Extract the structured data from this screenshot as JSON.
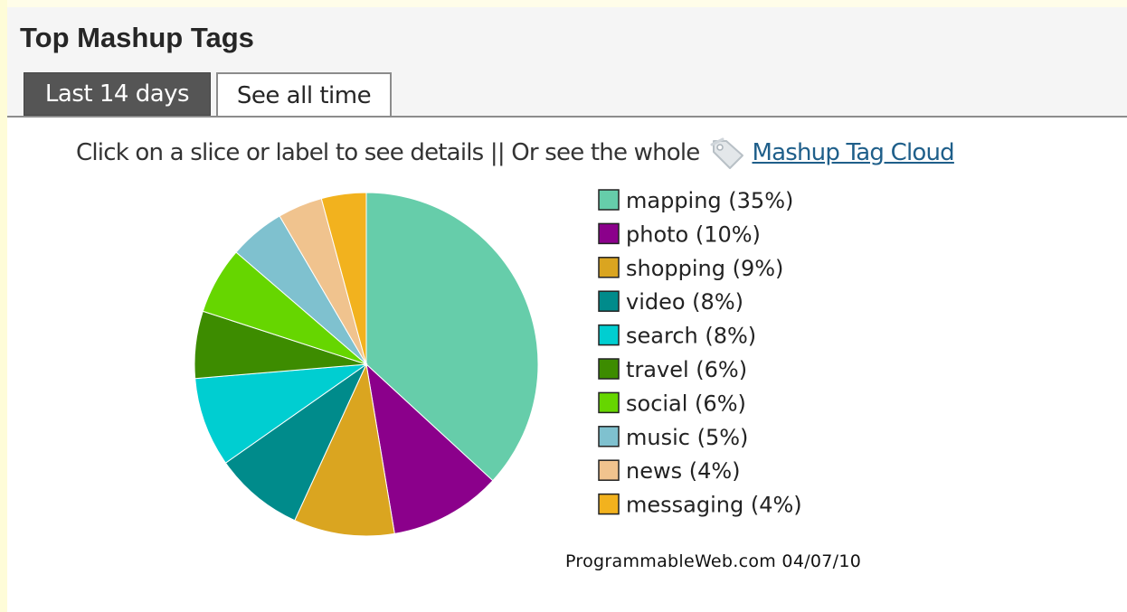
{
  "header": {
    "title": "Top Mashup Tags",
    "tabs": [
      {
        "label": "Last 14 days",
        "active": true
      },
      {
        "label": "See all time",
        "active": false
      }
    ]
  },
  "instruction": {
    "text": "Click on a slice or label to see details || Or see the whole",
    "link_label": "Mashup Tag Cloud",
    "icon": "tag-icon"
  },
  "chart_data": {
    "type": "pie",
    "unit": "%",
    "slices": [
      {
        "label": "mapping",
        "value": 35,
        "legend": "mapping (35%)",
        "color": "#66cdaa"
      },
      {
        "label": "photo",
        "value": 10,
        "legend": "photo (10%)",
        "color": "#8b008b"
      },
      {
        "label": "shopping",
        "value": 9,
        "legend": "shopping (9%)",
        "color": "#daa520"
      },
      {
        "label": "video",
        "value": 8,
        "legend": "video (8%)",
        "color": "#008b8b"
      },
      {
        "label": "search",
        "value": 8,
        "legend": "search (8%)",
        "color": "#00ced1"
      },
      {
        "label": "travel",
        "value": 6,
        "legend": "travel (6%)",
        "color": "#3d8c00"
      },
      {
        "label": "social",
        "value": 6,
        "legend": "social (6%)",
        "color": "#66d600"
      },
      {
        "label": "music",
        "value": 5,
        "legend": "music (5%)",
        "color": "#7fc1cf"
      },
      {
        "label": "news",
        "value": 4,
        "legend": "news (4%)",
        "color": "#f0c38e"
      },
      {
        "label": "messaging",
        "value": 4,
        "legend": "messaging (4%)",
        "color": "#f2b21e"
      }
    ],
    "legend_position": "right",
    "credit": "ProgrammableWeb.com 04/07/10"
  }
}
